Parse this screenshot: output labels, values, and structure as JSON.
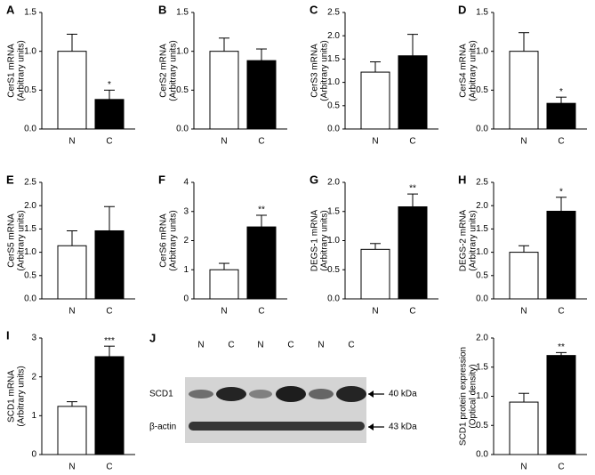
{
  "chart_data": [
    {
      "type": "bar",
      "panel": "A",
      "ylabel": [
        "CerS1 mRNA",
        "(Arbitrary units)"
      ],
      "categories": [
        "N",
        "C"
      ],
      "colors": [
        "#ffffff",
        "#000000"
      ],
      "values": [
        1.0,
        0.38
      ],
      "errors": [
        0.22,
        0.12
      ],
      "significance": [
        null,
        "*"
      ],
      "ylim": [
        0,
        1.5
      ],
      "yticks": [
        {
          "value": 0,
          "label": "0.0"
        },
        {
          "value": 0.5,
          "label": "0.5"
        },
        {
          "value": 1,
          "label": "1.0"
        },
        {
          "value": 1.5,
          "label": "1.5"
        }
      ]
    },
    {
      "type": "bar",
      "panel": "B",
      "ylabel": [
        "CerS2 mRNA",
        "(Arbitrary units)"
      ],
      "categories": [
        "N",
        "C"
      ],
      "colors": [
        "#ffffff",
        "#000000"
      ],
      "values": [
        1.0,
        0.88
      ],
      "errors": [
        0.17,
        0.15
      ],
      "significance": [
        null,
        null
      ],
      "ylim": [
        0,
        1.5
      ],
      "yticks": [
        {
          "value": 0,
          "label": "0.0"
        },
        {
          "value": 0.5,
          "label": "0.5"
        },
        {
          "value": 1,
          "label": "1.0"
        },
        {
          "value": 1.5,
          "label": "1.5"
        }
      ]
    },
    {
      "type": "bar",
      "panel": "C",
      "ylabel": [
        "CerS3 mRNA",
        "(Arbitrary units)"
      ],
      "categories": [
        "N",
        "C"
      ],
      "colors": [
        "#ffffff",
        "#000000"
      ],
      "values": [
        1.22,
        1.57
      ],
      "errors": [
        0.22,
        0.46
      ],
      "significance": [
        null,
        null
      ],
      "ylim": [
        0,
        2.5
      ],
      "yticks": [
        {
          "value": 0,
          "label": "0.0"
        },
        {
          "value": 0.5,
          "label": "0.5"
        },
        {
          "value": 1,
          "label": "1.0"
        },
        {
          "value": 1.5,
          "label": "1.5"
        },
        {
          "value": 2,
          "label": "2.0"
        },
        2.5
      ]
    },
    {
      "type": "bar",
      "panel": "D",
      "ylabel": [
        "CerS4 mRNA",
        "(Arbitrary units)"
      ],
      "categories": [
        "N",
        "C"
      ],
      "colors": [
        "#ffffff",
        "#000000"
      ],
      "values": [
        1.0,
        0.33
      ],
      "errors": [
        0.24,
        0.08
      ],
      "significance": [
        null,
        "*"
      ],
      "ylim": [
        0,
        1.5
      ],
      "yticks": [
        {
          "value": 0,
          "label": "0.0"
        },
        {
          "value": 0.5,
          "label": "0.5"
        },
        {
          "value": 1,
          "label": "1.0"
        },
        {
          "value": 1.5,
          "label": "1.5"
        }
      ]
    },
    {
      "type": "bar",
      "panel": "E",
      "ylabel": [
        "CerS5 mRNA",
        "(Arbitrary units)"
      ],
      "categories": [
        "N",
        "C"
      ],
      "colors": [
        "#ffffff",
        "#000000"
      ],
      "values": [
        1.14,
        1.46
      ],
      "errors": [
        0.32,
        0.52
      ],
      "significance": [
        null,
        null
      ],
      "ylim": [
        0,
        2.5
      ],
      "yticks": [
        {
          "value": 0,
          "label": "0.0"
        },
        {
          "value": 0.5,
          "label": "0.5"
        },
        {
          "value": 1,
          "label": "1.0"
        },
        {
          "value": 1.5,
          "label": "1.5"
        },
        {
          "value": 2,
          "label": "2.0"
        },
        2.5
      ]
    },
    {
      "type": "bar",
      "panel": "F",
      "ylabel": [
        "CerS6 mRNA",
        "(Arbitrary units)"
      ],
      "categories": [
        "N",
        "C"
      ],
      "colors": [
        "#ffffff",
        "#000000"
      ],
      "values": [
        1.0,
        2.47
      ],
      "errors": [
        0.22,
        0.4
      ],
      "significance": [
        null,
        "**"
      ],
      "ylim": [
        0,
        4
      ],
      "yticks": [
        0,
        1,
        2,
        3,
        4
      ]
    },
    {
      "type": "bar",
      "panel": "G",
      "ylabel": [
        "DEGS-1 mRNA",
        "(Arbitrary units)"
      ],
      "categories": [
        "N",
        "C"
      ],
      "colors": [
        "#ffffff",
        "#000000"
      ],
      "values": [
        0.85,
        1.58
      ],
      "errors": [
        0.1,
        0.22
      ],
      "significance": [
        null,
        "**"
      ],
      "ylim": [
        0,
        2
      ],
      "yticks": [
        {
          "value": 0,
          "label": "0.0"
        },
        {
          "value": 0.5,
          "label": "0.5"
        },
        {
          "value": 1,
          "label": "1.0"
        },
        {
          "value": 1.5,
          "label": "1.5"
        },
        {
          "value": 2,
          "label": "2.0"
        }
      ]
    },
    {
      "type": "bar",
      "panel": "H",
      "ylabel": [
        "DEGS-2 mRNA",
        "(Arbitrary units)"
      ],
      "categories": [
        "N",
        "C"
      ],
      "colors": [
        "#ffffff",
        "#000000"
      ],
      "values": [
        1.0,
        1.88
      ],
      "errors": [
        0.14,
        0.3
      ],
      "significance": [
        null,
        "*"
      ],
      "ylim": [
        0,
        2.5
      ],
      "yticks": [
        {
          "value": 0,
          "label": "0.0"
        },
        {
          "value": 0.5,
          "label": "0.5"
        },
        {
          "value": 1,
          "label": "1.0"
        },
        {
          "value": 1.5,
          "label": "1.5"
        },
        {
          "value": 2,
          "label": "2.0"
        },
        2.5
      ]
    },
    {
      "type": "bar",
      "panel": "I",
      "ylabel": [
        "SCD1 mRNA",
        "(Arbitrary units)"
      ],
      "categories": [
        "N",
        "C"
      ],
      "colors": [
        "#ffffff",
        "#000000"
      ],
      "values": [
        1.24,
        2.52
      ],
      "errors": [
        0.12,
        0.27
      ],
      "significance": [
        null,
        "***"
      ],
      "ylim": [
        0,
        3
      ],
      "yticks": [
        0,
        1,
        2,
        3
      ]
    },
    {
      "type": "bar",
      "ylabel": [
        "SCD1 protein expression",
        "(Optical density)"
      ],
      "categories": [
        "N",
        "C"
      ],
      "colors": [
        "#ffffff",
        "#000000"
      ],
      "values": [
        0.9,
        1.7
      ],
      "errors": [
        0.15,
        0.05
      ],
      "significance": [
        null,
        "**"
      ],
      "ylim": [
        0,
        2
      ],
      "yticks": [
        {
          "value": 0,
          "label": "0.0"
        },
        {
          "value": 0.5,
          "label": "0.5"
        },
        {
          "value": 1,
          "label": "1.0"
        },
        {
          "value": 1.5,
          "label": "1.5"
        },
        {
          "value": 2,
          "label": "2.0"
        }
      ]
    }
  ],
  "blot": {
    "panel": "J",
    "lanes": [
      "N",
      "C",
      "N",
      "C",
      "N",
      "C"
    ],
    "rows": [
      "SCD1",
      "β-actin"
    ],
    "markers": [
      "40 kDa",
      "43 kDa"
    ]
  }
}
